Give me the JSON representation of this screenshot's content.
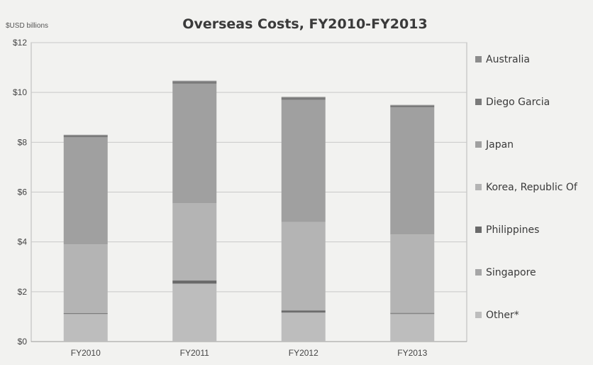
{
  "chart_data": {
    "type": "bar",
    "stacked": true,
    "title": "Overseas Costs, FY2010-FY2013",
    "unit_label": "$USD billions",
    "xlabel": "",
    "ylabel": "",
    "ylim": [
      0,
      12
    ],
    "yticks": [
      0,
      2,
      4,
      6,
      8,
      10,
      12
    ],
    "ytick_labels": [
      "$0",
      "$2",
      "$4",
      "$6",
      "$8",
      "$10",
      "$12"
    ],
    "categories": [
      "FY2010",
      "FY2011",
      "FY2012",
      "FY2013"
    ],
    "grid": true,
    "legend_position": "right",
    "series": [
      {
        "name": "Other*",
        "color": "#bdbdbd",
        "values": [
          1.1,
          2.3,
          1.15,
          1.1
        ]
      },
      {
        "name": "Singapore",
        "color": "#a6a6a6",
        "values": [
          0.02,
          0.03,
          0.02,
          0.02
        ]
      },
      {
        "name": "Philippines",
        "color": "#6a6a6a",
        "values": [
          0.02,
          0.12,
          0.08,
          0.03
        ]
      },
      {
        "name": "Korea, Republic Of",
        "color": "#b4b4b4",
        "values": [
          2.76,
          3.1,
          3.55,
          3.15
        ]
      },
      {
        "name": "Japan",
        "color": "#a0a0a0",
        "values": [
          4.3,
          4.8,
          4.9,
          5.1
        ]
      },
      {
        "name": "Diego Garcia",
        "color": "#7a7a7a",
        "values": [
          0.07,
          0.09,
          0.1,
          0.07
        ]
      },
      {
        "name": "Australia",
        "color": "#8c8c8c",
        "values": [
          0.03,
          0.03,
          0.02,
          0.03
        ]
      }
    ]
  }
}
